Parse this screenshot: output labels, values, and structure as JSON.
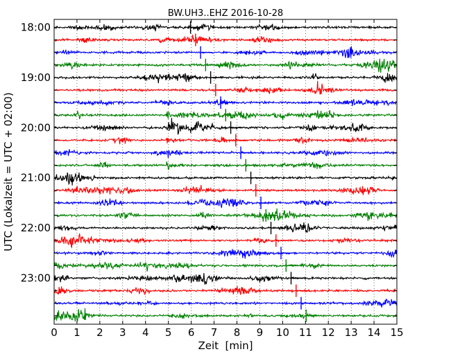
{
  "chart_data": {
    "type": "line",
    "title": "BW.UH3..EHZ 2016-10-28",
    "xlabel": "Zeit  [min]",
    "ylabel": "UTC (Lokalzeit = UTC + 02:00)",
    "xlim": [
      0,
      15
    ],
    "x_ticks": [
      "0",
      "1",
      "2",
      "3",
      "4",
      "5",
      "6",
      "7",
      "8",
      "9",
      "10",
      "11",
      "12",
      "13",
      "14",
      "15"
    ],
    "y_tick_labels": [
      "18:00",
      "19:00",
      "20:00",
      "21:00",
      "22:00",
      "23:00"
    ],
    "rows": [
      "18:00",
      "18:15",
      "18:30",
      "18:45",
      "19:00",
      "19:15",
      "19:30",
      "19:45",
      "20:00",
      "20:15",
      "20:30",
      "20:45",
      "21:00",
      "21:15",
      "21:30",
      "21:45",
      "22:00",
      "22:15",
      "22:30",
      "22:45",
      "23:00",
      "23:15",
      "23:30",
      "23:45"
    ],
    "row_colors": [
      "#000000",
      "#ff0000",
      "#0000ff",
      "#008000"
    ],
    "grid": "vertical dotted",
    "event": {
      "row_start": "19:45",
      "row_end": "20:45",
      "minute": 4.95,
      "peak_row": "20:00"
    }
  }
}
